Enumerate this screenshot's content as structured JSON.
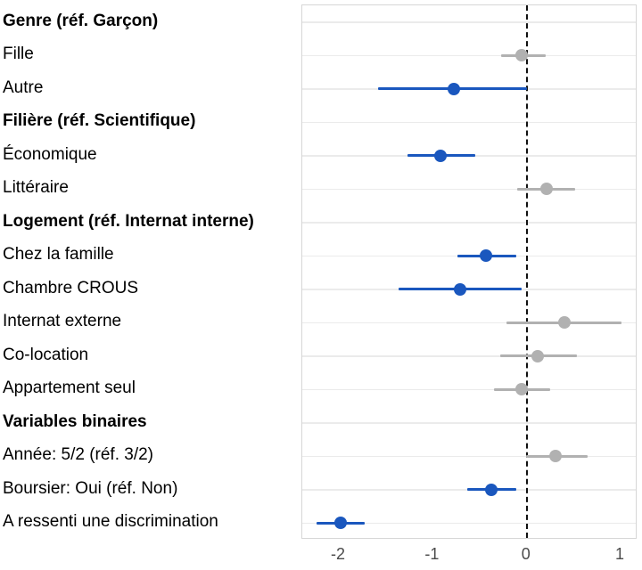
{
  "figure": {
    "background": "#ffffff",
    "panel_border_color": "#d6d6d6",
    "gridline_color": "#ebebeb",
    "zero_line_color": "#111111",
    "axis_text_color": "#4a4a4a",
    "label_color": "#000000",
    "significant_color": "#1a57be",
    "nonsignificant_color": "#b1b1b1"
  },
  "chart_data": {
    "type": "scatter",
    "subtype": "forest-coefficient-plot",
    "title": "",
    "xlabel": "",
    "ylabel": "",
    "xlim": [
      -2.39,
      1.18
    ],
    "x_ticks": [
      -2,
      -1,
      0,
      1
    ],
    "zero_reference_line": 0,
    "grid": "horizontal",
    "legend": "none",
    "rows": [
      {
        "label": "Genre (réf. Garçon)",
        "header": true
      },
      {
        "label": "Fille",
        "estimate": -0.05,
        "ci_low": -0.27,
        "ci_high": 0.2,
        "significant": false
      },
      {
        "label": "Autre",
        "estimate": -0.78,
        "ci_low": -1.58,
        "ci_high": 0.0,
        "significant": true
      },
      {
        "label": "Filière (réf. Scientifique)",
        "header": true
      },
      {
        "label": "Économique",
        "estimate": -0.92,
        "ci_low": -1.27,
        "ci_high": -0.55,
        "significant": true
      },
      {
        "label": "Littéraire",
        "estimate": 0.21,
        "ci_low": -0.1,
        "ci_high": 0.52,
        "significant": false
      },
      {
        "label": "Logement (réf. Internat interne)",
        "header": true
      },
      {
        "label": "Chez la famille",
        "estimate": -0.43,
        "ci_low": -0.74,
        "ci_high": -0.11,
        "significant": true
      },
      {
        "label": "Chambre CROUS",
        "estimate": -0.71,
        "ci_low": -1.36,
        "ci_high": -0.05,
        "significant": true
      },
      {
        "label": "Internat externe",
        "estimate": 0.4,
        "ci_low": -0.22,
        "ci_high": 1.01,
        "significant": false
      },
      {
        "label": "Co-location",
        "estimate": 0.12,
        "ci_low": -0.28,
        "ci_high": 0.53,
        "significant": false
      },
      {
        "label": "Appartement seul",
        "estimate": -0.05,
        "ci_low": -0.35,
        "ci_high": 0.25,
        "significant": false
      },
      {
        "label": "Variables binaires",
        "header": true
      },
      {
        "label": "Année: 5/2 (réf. 3/2)",
        "estimate": 0.31,
        "ci_low": -0.01,
        "ci_high": 0.65,
        "significant": false
      },
      {
        "label": "Boursier: Oui (réf. Non)",
        "estimate": -0.38,
        "ci_low": -0.63,
        "ci_high": -0.11,
        "significant": true
      },
      {
        "label": "A ressenti une discrimination",
        "estimate": -1.98,
        "ci_low": -2.24,
        "ci_high": -1.73,
        "significant": true
      }
    ]
  }
}
